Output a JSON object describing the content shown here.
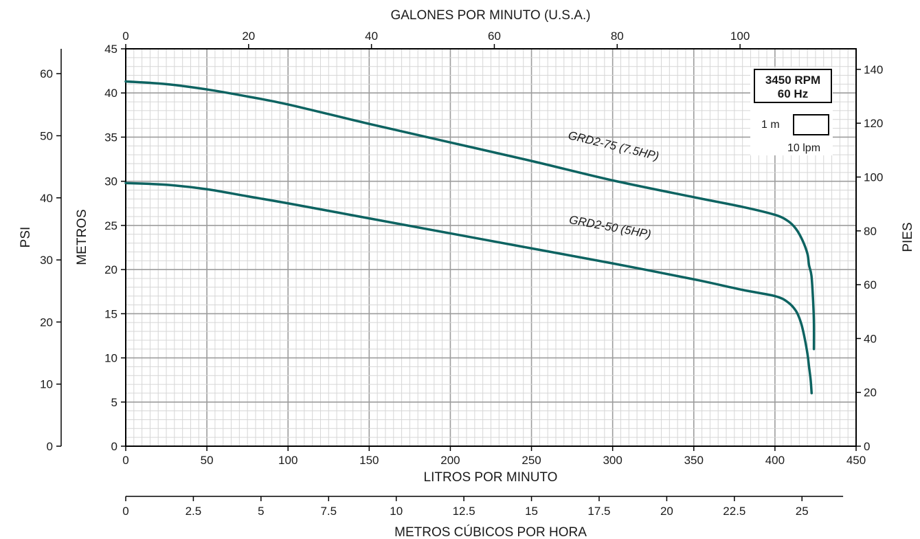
{
  "chart_data": {
    "type": "line",
    "title": "",
    "xlabel": "LITROS POR MINUTO",
    "ylabel": "METROS",
    "xlim": [
      0,
      450
    ],
    "ylim": [
      0,
      45
    ],
    "grid": true,
    "x_ticks": [
      "0",
      "50",
      "100",
      "150",
      "200",
      "250",
      "300",
      "350",
      "400",
      "450"
    ],
    "y_ticks": [
      "0",
      "5",
      "10",
      "15",
      "20",
      "25",
      "30",
      "35",
      "40",
      "45"
    ],
    "top_axis": {
      "label": "GALONES POR MINUTO (U.S.A.)",
      "ticks": [
        "0",
        "20",
        "40",
        "60",
        "80",
        "100"
      ],
      "values": [
        0,
        20,
        40,
        60,
        80,
        100
      ],
      "unit_per_x": 3.785
    },
    "bottom_axis2": {
      "label": "METROS CÚBICOS POR HORA",
      "ticks": [
        "0",
        "2.5",
        "5",
        "7.5",
        "10",
        "12.5",
        "15",
        "17.5",
        "20",
        "22.5",
        "25"
      ],
      "values": [
        0,
        2.5,
        5,
        7.5,
        10,
        12.5,
        15,
        17.5,
        20,
        22.5,
        25
      ],
      "unit_per_x": 16.6667
    },
    "left_axis2": {
      "label": "PSI",
      "ticks": [
        "0",
        "10",
        "20",
        "30",
        "40",
        "50",
        "60"
      ],
      "values": [
        0,
        10,
        20,
        30,
        40,
        50,
        60
      ],
      "unit_per_y": 0.7031
    },
    "right_axis": {
      "label": "PIES",
      "ticks": [
        "0",
        "20",
        "40",
        "60",
        "80",
        "100",
        "120",
        "140"
      ],
      "values": [
        0,
        20,
        40,
        60,
        80,
        100,
        120,
        140
      ],
      "unit_per_y": 0.3048
    },
    "series": [
      {
        "name": "GRD2-75 (7.5HP)",
        "label_at": [
          300,
          33.6
        ],
        "x": [
          0,
          25,
          50,
          75,
          100,
          150,
          200,
          250,
          300,
          350,
          380,
          400,
          408,
          413,
          417,
          420,
          421,
          422.5,
          423.5,
          424,
          424
        ],
        "y": [
          41.3,
          41.0,
          40.4,
          39.6,
          38.7,
          36.5,
          34.4,
          32.3,
          30.1,
          28.2,
          27.1,
          26.2,
          25.5,
          24.6,
          23.3,
          21.8,
          20.5,
          19.3,
          16.5,
          14.0,
          11.0
        ]
      },
      {
        "name": "GRD2-50 (5HP)",
        "label_at": [
          298,
          24.4
        ],
        "x": [
          0,
          25,
          50,
          75,
          100,
          150,
          200,
          250,
          300,
          350,
          380,
          400,
          408,
          413,
          416,
          418,
          420,
          421,
          422,
          422.6
        ],
        "y": [
          29.8,
          29.6,
          29.1,
          28.3,
          27.5,
          25.8,
          24.1,
          22.4,
          20.7,
          18.9,
          17.7,
          17.0,
          16.3,
          15.3,
          14.0,
          12.5,
          10.5,
          9.0,
          7.5,
          6.0
        ]
      }
    ],
    "colors": {
      "series": "#0d6361",
      "grid_minor": "#d6d6d6",
      "grid_major": "#9c9c9c",
      "axis": "#000000"
    },
    "legend": {
      "title_line1": "3450 RPM",
      "title_line2": "60 Hz",
      "scale_y_label": "1 m",
      "scale_x_label": "10 lpm",
      "position": "top-right"
    }
  }
}
